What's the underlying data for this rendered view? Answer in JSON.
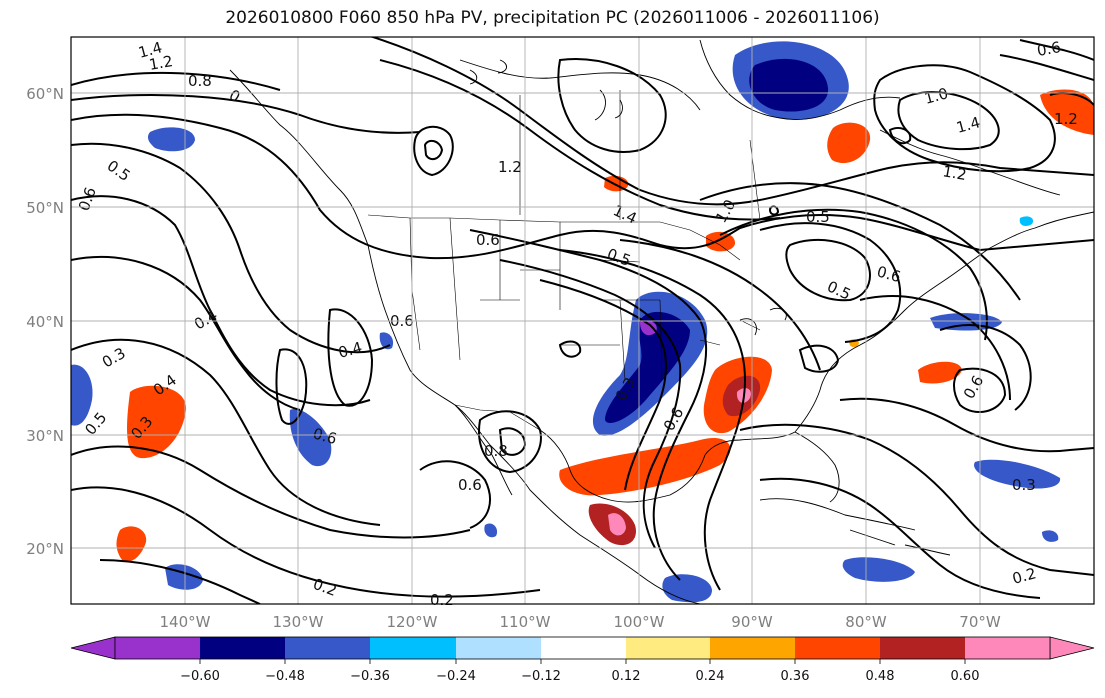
{
  "title": "2026010800 F060 850 hPa PV, precipitation PC (2026011006 - 2026011106)",
  "lat_labels": [
    "60°N",
    "50°N",
    "40°N",
    "30°N",
    "20°N"
  ],
  "lon_labels": [
    "140°W",
    "130°W",
    "120°W",
    "110°W",
    "100°W",
    "90°W",
    "80°W",
    "70°W"
  ],
  "colorbar": {
    "ticks": [
      "−0.60",
      "−0.48",
      "−0.36",
      "−0.24",
      "−0.12",
      "0.12",
      "0.24",
      "0.36",
      "0.48",
      "0.60"
    ],
    "colors": [
      "#9932cc",
      "#000080",
      "#3658c9",
      "#00bfff",
      "#b0e0ff",
      "#ffffff",
      "#ffeb7f",
      "#ffa500",
      "#ff4500",
      "#b22222",
      "#ff88bb"
    ]
  },
  "contour_labels": [
    "1.4",
    "1.2",
    "0.8",
    "0",
    "0.5",
    "0.6",
    "1.2",
    "1.4",
    "0.6",
    "0.5",
    "1.0",
    "1.0",
    "1.4",
    "1.2",
    "0.6",
    "0.5",
    "0.6",
    "0.6",
    "0.4",
    "0.4",
    "0.3",
    "0.4",
    "0.3",
    "0.5",
    "0.6",
    "0.8",
    "0.6",
    "0.3",
    "0.6",
    "0.3",
    "0.2",
    "0.2",
    "0.2",
    "1.2",
    "0.6",
    "0.5"
  ],
  "colors": {
    "contour": "#000000",
    "grid": "#b0b0b0",
    "tick_text": "#7f7f7f"
  }
}
